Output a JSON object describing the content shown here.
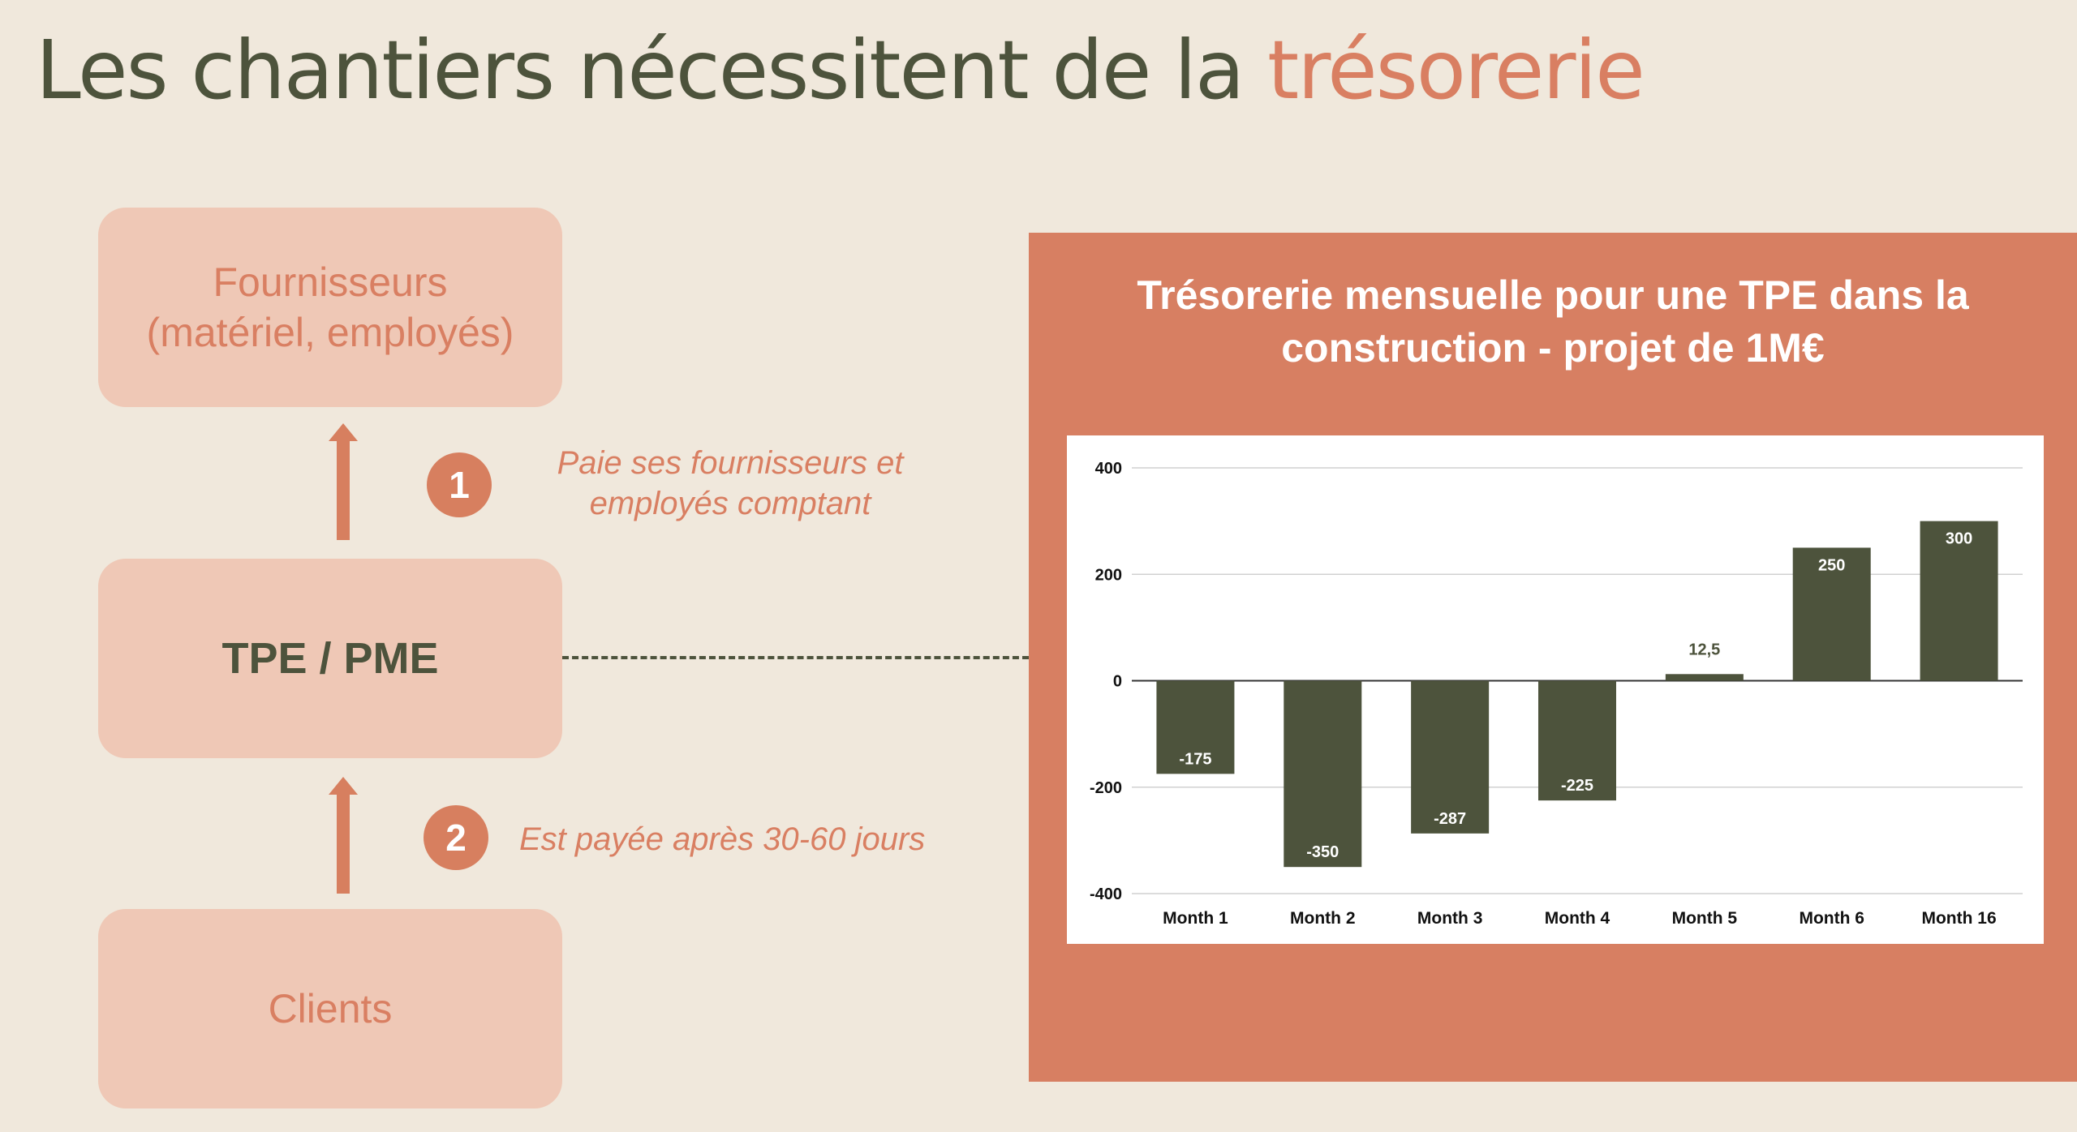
{
  "slide": {
    "title_main": "Les chantiers nécessitent de la ",
    "title_accent": "trésorerie"
  },
  "flow": {
    "top_box_line1": "Fournisseurs",
    "top_box_line2": "(matériel, employés)",
    "middle_box": "TPE / PME",
    "bottom_box": "Clients",
    "step1_number": "1",
    "step1_line1": "Paie ses fournisseurs et",
    "step1_line2": "employés comptant",
    "step2_number": "2",
    "step2_text": "Est payée après 30-60 jours"
  },
  "colors": {
    "background": "#f0e8dc",
    "green": "#4d533c",
    "accent": "#d77f62",
    "box": "#efc8b6"
  },
  "chart_data": {
    "type": "bar",
    "title_line1": "Trésorerie mensuelle pour une TPE dans la",
    "title_line2": "construction - projet de 1M€",
    "categories": [
      "Month 1",
      "Month 2",
      "Month 3",
      "Month 4",
      "Month 5",
      "Month 6",
      "Month 16"
    ],
    "values": [
      -175,
      -350,
      -287,
      -225,
      12.5,
      250,
      300
    ],
    "value_labels": [
      "-175",
      "-350",
      "-287",
      "-225",
      "12,5",
      "250",
      "300"
    ],
    "ylim": [
      -400,
      400
    ],
    "yticks": [
      400,
      200,
      0,
      -200,
      -400
    ],
    "grid": true,
    "bar_color": "#4d533c",
    "xlabel": "",
    "ylabel": ""
  }
}
